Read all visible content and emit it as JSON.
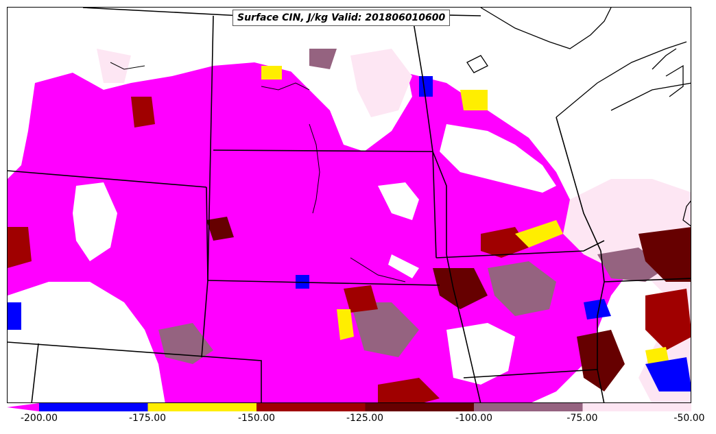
{
  "title": "Surface CIN, J/kg Valid: 201806010600",
  "legend": {
    "ticks": [
      "-200.00",
      "-175.00",
      "-150.00",
      "-125.00",
      "-100.00",
      "-75.00",
      "-50.00"
    ],
    "bins": [
      {
        "from": -200,
        "to": -175,
        "color": "#0000ff"
      },
      {
        "from": -175,
        "to": -150,
        "color": "#ffee00"
      },
      {
        "from": -150,
        "to": -125,
        "color": "#a00000"
      },
      {
        "from": -125,
        "to": -100,
        "color": "#660000"
      },
      {
        "from": -100,
        "to": -75,
        "color": "#956380"
      },
      {
        "from": -75,
        "to": -50,
        "color": "#fde6f3"
      }
    ],
    "under_color": "#ff00ff"
  },
  "colors": {
    "under": "#ff00ff",
    "blue": "#0000ff",
    "yellow": "#ffee00",
    "red": "#a00000",
    "darkred": "#660000",
    "mauve": "#956380",
    "pink": "#fde6f3",
    "none": "#ffffff"
  }
}
